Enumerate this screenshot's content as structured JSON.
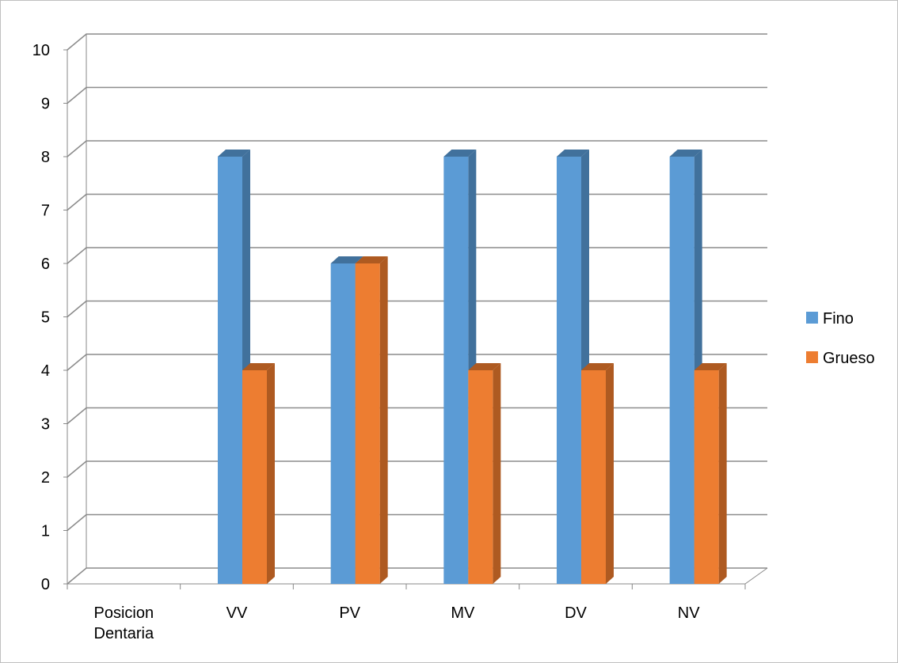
{
  "chart_data": {
    "type": "bar",
    "categories": [
      "Posicion Dentaria",
      "VV",
      "PV",
      "MV",
      "DV",
      "NV"
    ],
    "series": [
      {
        "name": "Fino",
        "values": [
          0,
          8,
          6,
          8,
          8,
          8
        ],
        "color": "#5B9BD5",
        "side_color": "#41719C"
      },
      {
        "name": "Grueso",
        "values": [
          0,
          4,
          6,
          4,
          4,
          4
        ],
        "color": "#ED7D31",
        "side_color": "#AE5A21"
      }
    ],
    "ylim": [
      0,
      10
    ],
    "yticks": [
      0,
      1,
      2,
      3,
      4,
      5,
      6,
      7,
      8,
      9,
      10
    ],
    "grid": true,
    "legend_position": "right",
    "style": "3d-clustered-column"
  }
}
